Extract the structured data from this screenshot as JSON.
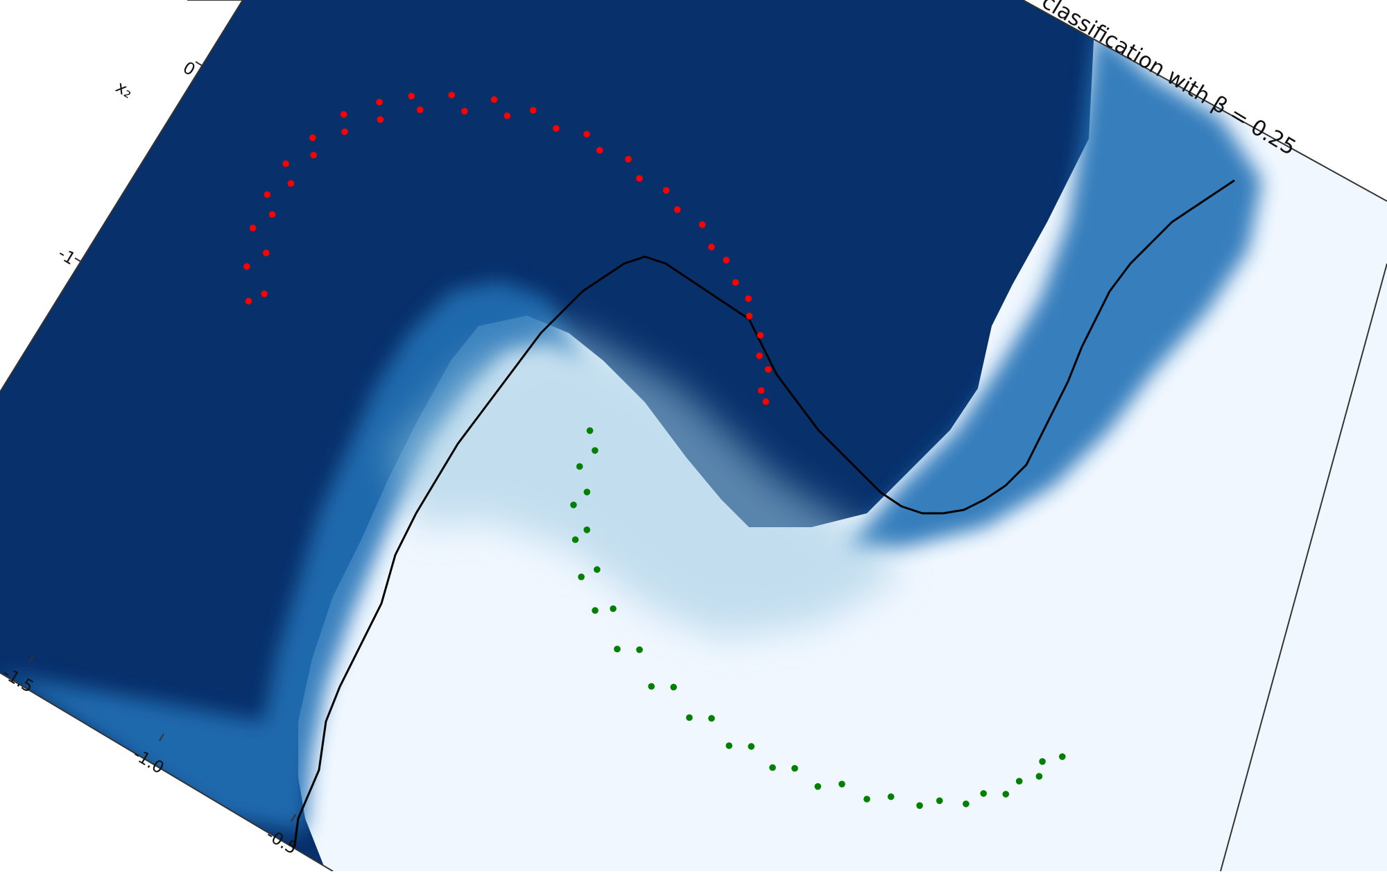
{
  "chart_data": {
    "type": "scatter",
    "title": "classification with β = 0.25",
    "xlabel": "",
    "ylabel": "x₂",
    "xticks": [
      "-1.5",
      "-1.0",
      "-0.5"
    ],
    "yticks": [
      "0",
      "-1"
    ],
    "background_map": {
      "kind": "filled-contour",
      "colormap": "Blues",
      "high_color": "#08306b",
      "low_color": "#f0f7ff",
      "decision_boundary_color": "#000000"
    },
    "series": [
      {
        "color": "#ff0000",
        "shape": "upper crescent",
        "points": [
          [
            -0.92,
            0.12
          ],
          [
            -0.96,
            0.2
          ],
          [
            -0.99,
            0.3
          ],
          [
            -1.0,
            0.4
          ],
          [
            -1.0,
            0.5
          ],
          [
            -0.98,
            0.6
          ],
          [
            -0.95,
            0.7
          ],
          [
            -0.9,
            0.78
          ],
          [
            -0.85,
            0.84
          ],
          [
            -0.78,
            0.9
          ],
          [
            -0.7,
            0.95
          ],
          [
            -0.62,
            0.98
          ],
          [
            -0.5,
            1.0
          ],
          [
            -0.4,
            1.0
          ],
          [
            -0.3,
            0.98
          ],
          [
            -0.2,
            0.95
          ],
          [
            -0.12,
            0.9
          ],
          [
            -0.04,
            0.84
          ],
          [
            0.02,
            0.77
          ],
          [
            0.07,
            0.7
          ],
          [
            0.1,
            0.62
          ],
          [
            -0.9,
            0.16
          ],
          [
            -0.94,
            0.26
          ],
          [
            -0.97,
            0.36
          ],
          [
            -0.97,
            0.46
          ],
          [
            -0.96,
            0.56
          ],
          [
            -0.93,
            0.66
          ],
          [
            -0.88,
            0.74
          ],
          [
            -0.82,
            0.82
          ],
          [
            -0.74,
            0.88
          ],
          [
            -0.66,
            0.93
          ],
          [
            -0.56,
            0.97
          ],
          [
            -0.46,
            0.98
          ],
          [
            -0.36,
            0.97
          ],
          [
            -0.26,
            0.95
          ],
          [
            -0.16,
            0.91
          ],
          [
            -0.08,
            0.86
          ],
          [
            -0.02,
            0.8
          ],
          [
            0.04,
            0.72
          ],
          [
            0.08,
            0.64
          ]
        ]
      },
      {
        "color": "#008000",
        "shape": "lower crescent",
        "points": [
          [
            -0.18,
            0.3
          ],
          [
            -0.16,
            0.2
          ],
          [
            -0.13,
            0.1
          ],
          [
            -0.09,
            0.02
          ],
          [
            -0.04,
            -0.06
          ],
          [
            0.02,
            -0.12
          ],
          [
            0.1,
            -0.18
          ],
          [
            0.2,
            -0.22
          ],
          [
            0.3,
            -0.24
          ],
          [
            0.4,
            -0.25
          ],
          [
            0.5,
            -0.24
          ],
          [
            0.6,
            -0.22
          ],
          [
            0.7,
            -0.18
          ],
          [
            0.8,
            -0.12
          ],
          [
            0.88,
            -0.05
          ],
          [
            0.94,
            0.03
          ],
          [
            0.98,
            0.12
          ],
          [
            1.0,
            0.2
          ],
          [
            -0.15,
            0.26
          ],
          [
            -0.12,
            0.15
          ],
          [
            -0.08,
            0.06
          ],
          [
            -0.02,
            -0.02
          ],
          [
            0.05,
            -0.09
          ],
          [
            0.14,
            -0.15
          ],
          [
            0.24,
            -0.19
          ],
          [
            0.34,
            -0.21
          ],
          [
            0.44,
            -0.22
          ],
          [
            0.54,
            -0.21
          ],
          [
            0.64,
            -0.18
          ],
          [
            0.74,
            -0.14
          ],
          [
            0.83,
            -0.08
          ],
          [
            0.9,
            0.0
          ],
          [
            0.95,
            0.08
          ],
          [
            0.97,
            0.16
          ]
        ]
      }
    ],
    "grid": false,
    "legend": "none"
  }
}
